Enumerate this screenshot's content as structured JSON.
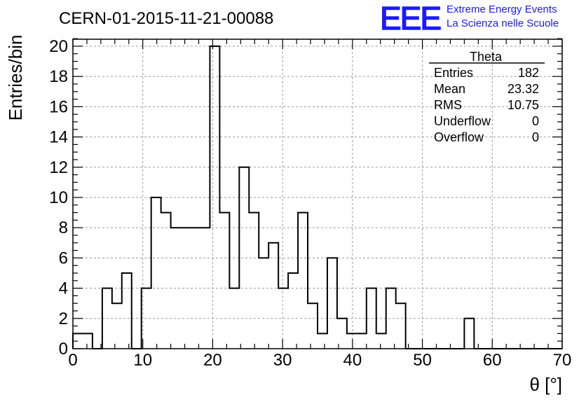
{
  "header": {
    "run_title": "CERN-01-2015-11-21-00088",
    "logo_text": "EEE",
    "logo_line1": "Extreme Energy Events",
    "logo_line2": "La Scienza nelle Scuole"
  },
  "stats_box": {
    "title": "Theta",
    "rows": [
      {
        "label": "Entries",
        "value": "182"
      },
      {
        "label": "Mean",
        "value": "23.32"
      },
      {
        "label": "RMS",
        "value": "10.75"
      },
      {
        "label": "Underflow",
        "value": "0"
      },
      {
        "label": "Overflow",
        "value": "0"
      }
    ]
  },
  "colors": {
    "line": "#000000",
    "grid": "#9a9a9a",
    "logo": "#1a1aff"
  },
  "chart_data": {
    "type": "bar",
    "style": "step-histogram",
    "xlabel": "θ [°]",
    "ylabel": "Entries/bin",
    "xlim": [
      0,
      70
    ],
    "ylim": [
      0,
      21
    ],
    "grid": true,
    "x_ticks": [
      0,
      10,
      20,
      30,
      40,
      50,
      60,
      70
    ],
    "y_ticks": [
      0,
      2,
      4,
      6,
      8,
      10,
      12,
      14,
      16,
      18,
      20
    ],
    "bin_width": 1.4,
    "values": [
      1,
      1,
      0,
      4,
      3,
      5,
      0,
      4,
      10,
      9,
      8,
      8,
      8,
      8,
      20,
      9,
      4,
      12,
      9,
      6,
      7,
      4,
      5,
      9,
      3,
      1,
      6,
      2,
      1,
      1,
      4,
      1,
      4,
      3,
      0,
      0,
      0,
      0,
      0,
      0,
      2,
      0,
      0,
      0,
      0,
      0,
      0,
      0,
      0,
      0
    ]
  }
}
